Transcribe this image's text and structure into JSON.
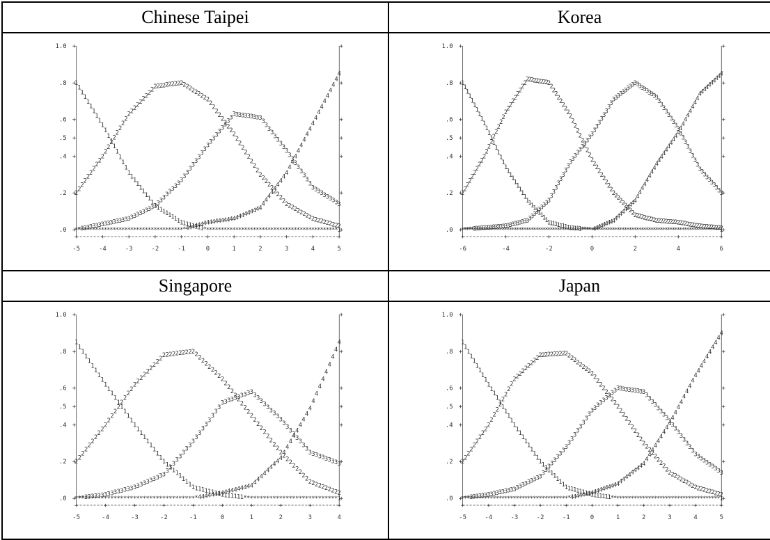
{
  "panels": [
    {
      "title": "Chinese Taipei",
      "chart_data": {
        "type": "line",
        "x_ticks": [
          "-5",
          "-4",
          "-3",
          "-2",
          "-1",
          "0",
          "1",
          "2",
          "3",
          "4",
          "5"
        ],
        "y_ticks": [
          ".0",
          ".2",
          ".4",
          ".5",
          ".6",
          ".8",
          "1.0"
        ],
        "xlim": [
          -5,
          5
        ],
        "ylim": [
          0,
          1
        ],
        "series": [
          {
            "symbol": "1",
            "x": [
              -5,
              -4,
              -3,
              -2,
              -1,
              0,
              1,
              2,
              3,
              4,
              5
            ],
            "y": [
              0.8,
              0.57,
              0.31,
              0.13,
              0.04,
              0.0,
              0.0,
              0.0,
              0.0,
              0.0,
              0.0
            ]
          },
          {
            "symbol": "2",
            "x": [
              -5,
              -4,
              -3,
              -2,
              -1,
              0,
              1,
              2,
              3,
              4,
              5
            ],
            "y": [
              0.2,
              0.4,
              0.63,
              0.78,
              0.8,
              0.71,
              0.52,
              0.3,
              0.14,
              0.06,
              0.02
            ]
          },
          {
            "symbol": "3",
            "x": [
              -5,
              -4,
              -3,
              -2,
              -1,
              0,
              1,
              2,
              3,
              4,
              5
            ],
            "y": [
              0.0,
              0.03,
              0.06,
              0.13,
              0.27,
              0.46,
              0.63,
              0.61,
              0.43,
              0.23,
              0.14
            ]
          },
          {
            "symbol": "4",
            "x": [
              -5,
              -4,
              -3,
              -2,
              -1,
              0,
              1,
              2,
              3,
              4,
              5
            ],
            "y": [
              0.0,
              0.0,
              0.0,
              0.0,
              0.0,
              0.04,
              0.06,
              0.12,
              0.31,
              0.58,
              0.85
            ]
          }
        ]
      }
    },
    {
      "title": "Korea",
      "chart_data": {
        "type": "line",
        "x_ticks": [
          "-6",
          "-4",
          "-2",
          "0",
          "2",
          "4",
          "6"
        ],
        "y_ticks": [
          ".0",
          ".2",
          ".4",
          ".5",
          ".6",
          ".8",
          "1.0"
        ],
        "xlim": [
          -6,
          6
        ],
        "ylim": [
          0,
          1
        ],
        "series": [
          {
            "symbol": "1",
            "x": [
              -6,
              -5,
              -4,
              -3,
              -2,
              -1,
              0,
              1,
              2,
              3,
              4,
              5,
              6
            ],
            "y": [
              0.8,
              0.58,
              0.34,
              0.16,
              0.04,
              0.01,
              0.0,
              0.0,
              0.0,
              0.0,
              0.0,
              0.0,
              0.0
            ]
          },
          {
            "symbol": "2",
            "x": [
              -6,
              -5,
              -4,
              -3,
              -2,
              -1,
              0,
              1,
              2,
              3,
              4,
              5,
              6
            ],
            "y": [
              0.2,
              0.4,
              0.64,
              0.82,
              0.8,
              0.62,
              0.38,
              0.2,
              0.08,
              0.05,
              0.04,
              0.02,
              0.01
            ]
          },
          {
            "symbol": "3",
            "x": [
              -6,
              -5,
              -4,
              -3,
              -2,
              -1,
              0,
              1,
              2,
              3,
              4,
              5,
              6
            ],
            "y": [
              0.0,
              0.01,
              0.02,
              0.05,
              0.16,
              0.37,
              0.52,
              0.71,
              0.8,
              0.72,
              0.55,
              0.33,
              0.2
            ]
          },
          {
            "symbol": "4",
            "x": [
              -6,
              -5,
              -4,
              -3,
              -2,
              -1,
              0,
              1,
              2,
              3,
              4,
              5,
              6
            ],
            "y": [
              0.0,
              0.0,
              0.0,
              0.0,
              0.0,
              0.0,
              0.0,
              0.05,
              0.16,
              0.36,
              0.53,
              0.74,
              0.85
            ]
          }
        ]
      }
    },
    {
      "title": "Singapore",
      "chart_data": {
        "type": "line",
        "x_ticks": [
          "-5",
          "-4",
          "-3",
          "-2",
          "-1",
          "0",
          "1",
          "2",
          "3",
          "4"
        ],
        "y_ticks": [
          ".0",
          ".2",
          ".4",
          ".5",
          ".6",
          ".8",
          "1.0"
        ],
        "xlim": [
          -5,
          4
        ],
        "ylim": [
          0,
          1
        ],
        "series": [
          {
            "symbol": "1",
            "x": [
              -5,
              -4,
              -3,
              -2,
              -1,
              0,
              1,
              2,
              3,
              4
            ],
            "y": [
              0.85,
              0.62,
              0.4,
              0.2,
              0.06,
              0.02,
              0.0,
              0.0,
              0.0,
              0.0
            ]
          },
          {
            "symbol": "2",
            "x": [
              -5,
              -4,
              -3,
              -2,
              -1,
              0,
              1,
              2,
              3,
              4
            ],
            "y": [
              0.2,
              0.4,
              0.62,
              0.78,
              0.8,
              0.65,
              0.45,
              0.25,
              0.09,
              0.03
            ]
          },
          {
            "symbol": "3",
            "x": [
              -5,
              -4,
              -3,
              -2,
              -1,
              0,
              1,
              2,
              3,
              4
            ],
            "y": [
              0.0,
              0.02,
              0.06,
              0.13,
              0.31,
              0.52,
              0.58,
              0.43,
              0.25,
              0.19
            ]
          },
          {
            "symbol": "4",
            "x": [
              -5,
              -4,
              -3,
              -2,
              -1,
              0,
              1,
              2,
              3,
              4
            ],
            "y": [
              0.0,
              0.0,
              0.0,
              0.0,
              0.0,
              0.03,
              0.07,
              0.22,
              0.49,
              0.85
            ]
          }
        ]
      }
    },
    {
      "title": "Japan",
      "chart_data": {
        "type": "line",
        "x_ticks": [
          "-5",
          "-4",
          "-3",
          "-2",
          "-1",
          "0",
          "1",
          "2",
          "3",
          "4",
          "5"
        ],
        "y_ticks": [
          ".0",
          ".2",
          ".4",
          ".5",
          ".6",
          ".8",
          "1.0"
        ],
        "xlim": [
          -5,
          5
        ],
        "ylim": [
          0,
          1
        ],
        "series": [
          {
            "symbol": "1",
            "x": [
              -5,
              -4,
              -3,
              -2,
              -1,
              0,
              1,
              2,
              3,
              4,
              5
            ],
            "y": [
              0.85,
              0.62,
              0.4,
              0.2,
              0.06,
              0.02,
              0.0,
              0.0,
              0.0,
              0.0,
              0.0
            ]
          },
          {
            "symbol": "2",
            "x": [
              -5,
              -4,
              -3,
              -2,
              -1,
              0,
              1,
              2,
              3,
              4,
              5
            ],
            "y": [
              0.2,
              0.4,
              0.65,
              0.78,
              0.79,
              0.68,
              0.5,
              0.3,
              0.14,
              0.06,
              0.02
            ]
          },
          {
            "symbol": "3",
            "x": [
              -5,
              -4,
              -3,
              -2,
              -1,
              0,
              1,
              2,
              3,
              4,
              5
            ],
            "y": [
              0.0,
              0.02,
              0.05,
              0.12,
              0.28,
              0.48,
              0.6,
              0.58,
              0.42,
              0.24,
              0.14
            ]
          },
          {
            "symbol": "4",
            "x": [
              -5,
              -4,
              -3,
              -2,
              -1,
              0,
              1,
              2,
              3,
              4,
              5
            ],
            "y": [
              0.0,
              0.0,
              0.0,
              0.0,
              0.0,
              0.03,
              0.08,
              0.19,
              0.41,
              0.67,
              0.9
            ]
          }
        ]
      }
    }
  ]
}
